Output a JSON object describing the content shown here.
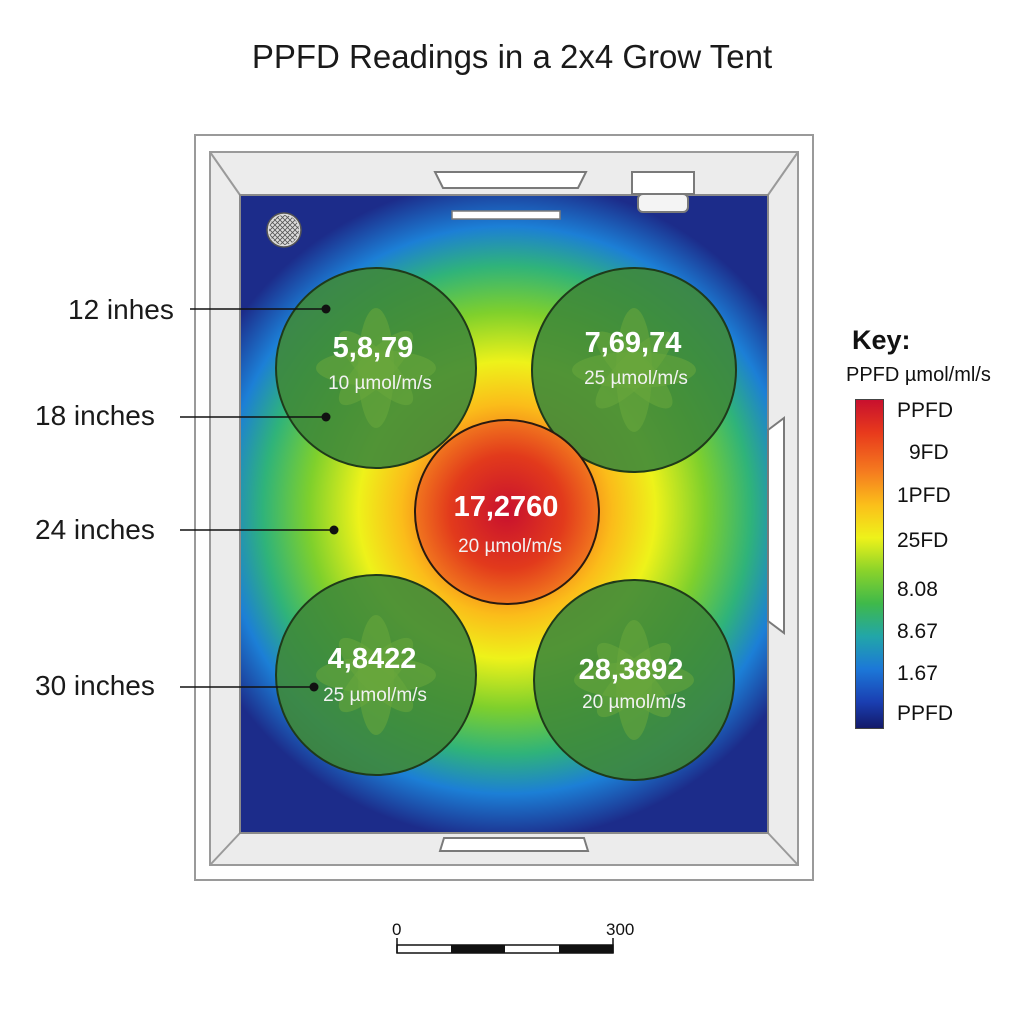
{
  "title": "PPFD Readings in a 2x4 Grow Tent",
  "depth_labels": [
    "12 inhes",
    "18 inches",
    "24 inches",
    "30 inches"
  ],
  "readings": [
    {
      "value": "5,8,79",
      "unit": "10 µmol/m/s"
    },
    {
      "value": "7,69,74",
      "unit": "25 µmol/m/s"
    },
    {
      "value": "17,2760",
      "unit": "20 µmol/m/s"
    },
    {
      "value": "4,8422",
      "unit": "25 µmol/m/s"
    },
    {
      "value": "28,3892",
      "unit": "20 µmol/m/s"
    }
  ],
  "key": {
    "title": "Key:",
    "subtitle": "PPFD µmol/ml/s",
    "ticks": [
      "PPFD",
      "9FD",
      "1PFD",
      "25FD",
      "8.08",
      "8.67",
      "1.67",
      "PPFD"
    ],
    "colors": [
      "#c8102e",
      "#f57c1f",
      "#eef21a",
      "#3fb94a",
      "#1c78d8",
      "#131a6a"
    ]
  },
  "scale_bar": {
    "start": "0",
    "end": "300"
  },
  "icons": {
    "fan": "fan-grille-icon",
    "vent": "vent-icon",
    "light": "grow-light-icon",
    "plant": "plant-leaves-icon"
  }
}
